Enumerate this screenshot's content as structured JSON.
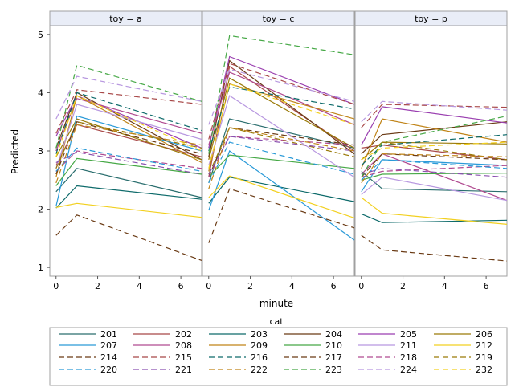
{
  "chart_data": {
    "type": "line",
    "ylabel": "Predicted",
    "xlabel": "minute",
    "ylim": [
      0.85,
      5.15
    ],
    "xlim": [
      -0.3,
      7.0
    ],
    "yticks": [
      1,
      2,
      3,
      4,
      5
    ],
    "xticks": [
      0,
      2,
      4,
      6
    ],
    "x": [
      0,
      1,
      7
    ],
    "panels": [
      {
        "label": "toy = a"
      },
      {
        "label": "toy = c"
      },
      {
        "label": "toy = p"
      }
    ],
    "legend": {
      "title": "cat",
      "placement": "bottom"
    },
    "series": [
      {
        "name": "201",
        "color": "#2a6e6e",
        "dashed": false,
        "values": [
          [
            2.3,
            2.7,
            2.2
          ],
          [
            2.45,
            3.55,
            3.05
          ],
          [
            2.65,
            2.35,
            2.3
          ]
        ]
      },
      {
        "name": "202",
        "color": "#a84848",
        "dashed": false,
        "values": [
          [
            2.75,
            3.45,
            2.9
          ],
          [
            2.55,
            4.45,
            3.0
          ],
          [
            3.05,
            3.1,
            2.85
          ]
        ]
      },
      {
        "name": "203",
        "color": "#0d6a6a",
        "dashed": false,
        "values": [
          [
            2.02,
            2.4,
            2.17
          ],
          [
            2.1,
            2.55,
            2.13
          ],
          [
            1.92,
            1.77,
            1.81
          ]
        ]
      },
      {
        "name": "204",
        "color": "#6a3a14",
        "dashed": false,
        "values": [
          [
            3.05,
            4.0,
            2.85
          ],
          [
            2.9,
            4.55,
            2.95
          ],
          [
            2.95,
            3.28,
            3.5
          ]
        ]
      },
      {
        "name": "205",
        "color": "#9a3fb0",
        "dashed": false,
        "values": [
          [
            3.25,
            3.95,
            3.05
          ],
          [
            3.05,
            4.62,
            3.8
          ],
          [
            3.1,
            3.76,
            3.48
          ]
        ]
      },
      {
        "name": "206",
        "color": "#9a7a08",
        "dashed": false,
        "values": [
          [
            2.9,
            3.55,
            2.85
          ],
          [
            2.85,
            4.25,
            3.05
          ],
          [
            2.85,
            3.15,
            3.12
          ]
        ]
      },
      {
        "name": "207",
        "color": "#2a9ad8",
        "dashed": false,
        "values": [
          [
            2.05,
            3.6,
            3.0
          ],
          [
            1.98,
            3.0,
            1.47
          ],
          [
            2.3,
            2.85,
            2.75
          ]
        ]
      },
      {
        "name": "208",
        "color": "#b04a90",
        "dashed": false,
        "values": [
          [
            3.0,
            3.9,
            3.3
          ],
          [
            3.1,
            4.35,
            3.45
          ],
          [
            2.6,
            2.95,
            2.15
          ]
        ]
      },
      {
        "name": "209",
        "color": "#c08418",
        "dashed": false,
        "values": [
          [
            2.55,
            3.95,
            2.8
          ],
          [
            2.65,
            4.15,
            3.55
          ],
          [
            2.7,
            3.55,
            3.15
          ]
        ]
      },
      {
        "name": "210",
        "color": "#46a846",
        "dashed": false,
        "values": [
          [
            2.4,
            2.87,
            2.6
          ],
          [
            2.55,
            2.93,
            2.7
          ],
          [
            2.5,
            2.6,
            2.62
          ]
        ]
      },
      {
        "name": "211",
        "color": "#b898e0",
        "dashed": false,
        "values": [
          [
            2.7,
            3.8,
            3.2
          ],
          [
            2.75,
            3.95,
            2.55
          ],
          [
            2.25,
            2.55,
            2.15
          ]
        ]
      },
      {
        "name": "212",
        "color": "#f2d020",
        "dashed": false,
        "values": [
          [
            2.03,
            2.1,
            1.86
          ],
          [
            2.2,
            2.57,
            1.85
          ],
          [
            2.2,
            1.93,
            1.74
          ]
        ]
      },
      {
        "name": "214",
        "color": "#6a3a14",
        "dashed": true,
        "values": [
          [
            1.55,
            1.9,
            1.12
          ],
          [
            1.42,
            2.35,
            1.68
          ],
          [
            1.55,
            1.3,
            1.11
          ]
        ]
      },
      {
        "name": "215",
        "color": "#a84848",
        "dashed": true,
        "values": [
          [
            3.3,
            4.05,
            3.8
          ],
          [
            3.2,
            4.5,
            3.8
          ],
          [
            3.4,
            3.8,
            3.75
          ]
        ]
      },
      {
        "name": "216",
        "color": "#0d6a6a",
        "dashed": true,
        "values": [
          [
            2.95,
            4.0,
            3.35
          ],
          [
            3.0,
            4.1,
            3.72
          ],
          [
            2.75,
            3.1,
            3.28
          ]
        ]
      },
      {
        "name": "217",
        "color": "#6a3a14",
        "dashed": true,
        "values": [
          [
            2.6,
            3.5,
            2.95
          ],
          [
            2.55,
            3.4,
            3.1
          ],
          [
            2.55,
            2.95,
            2.85
          ]
        ]
      },
      {
        "name": "218",
        "color": "#b04a90",
        "dashed": true,
        "values": [
          [
            2.65,
            3.0,
            2.7
          ],
          [
            2.55,
            3.25,
            3.1
          ],
          [
            2.55,
            2.65,
            2.75
          ]
        ]
      },
      {
        "name": "219",
        "color": "#9a7a08",
        "dashed": true,
        "values": [
          [
            2.7,
            3.5,
            3.05
          ],
          [
            2.6,
            3.4,
            2.9
          ],
          [
            2.85,
            3.15,
            2.85
          ]
        ]
      },
      {
        "name": "220",
        "color": "#2a9ad8",
        "dashed": true,
        "values": [
          [
            2.65,
            3.05,
            2.65
          ],
          [
            2.45,
            3.15,
            2.6
          ],
          [
            2.5,
            2.85,
            2.7
          ]
        ]
      },
      {
        "name": "221",
        "color": "#8a50b0",
        "dashed": true,
        "values": [
          [
            2.8,
            2.98,
            2.6
          ],
          [
            2.6,
            3.25,
            3.0
          ],
          [
            2.6,
            2.7,
            2.55
          ]
        ]
      },
      {
        "name": "222",
        "color": "#c08418",
        "dashed": true,
        "values": [
          [
            2.45,
            3.45,
            3.1
          ],
          [
            2.35,
            3.4,
            3.0
          ],
          [
            2.45,
            2.95,
            2.9
          ]
        ]
      },
      {
        "name": "223",
        "color": "#46a846",
        "dashed": true,
        "values": [
          [
            3.05,
            4.47,
            3.85
          ],
          [
            2.95,
            4.98,
            4.65
          ],
          [
            2.55,
            3.15,
            3.6
          ]
        ]
      },
      {
        "name": "224",
        "color": "#b898e0",
        "dashed": true,
        "values": [
          [
            3.55,
            4.28,
            3.85
          ],
          [
            3.45,
            4.4,
            3.85
          ],
          [
            3.5,
            3.85,
            3.7
          ]
        ]
      },
      {
        "name": "232",
        "color": "#f2d020",
        "dashed": true,
        "values": [
          [
            2.9,
            3.95,
            3.0
          ],
          [
            2.7,
            4.15,
            3.45
          ],
          [
            2.85,
            3.05,
            3.15
          ]
        ]
      }
    ]
  }
}
